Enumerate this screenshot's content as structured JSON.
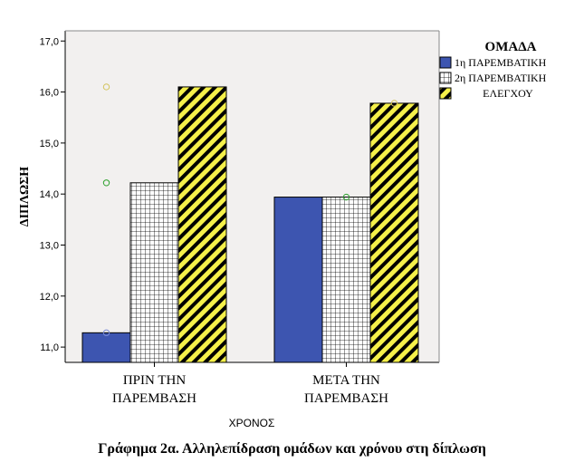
{
  "caption": "Γράφημα 2α. Αλληλεπίδραση ομάδων και χρόνου στη δίπλωση",
  "chart_data": {
    "type": "bar",
    "ylabel": "ΔΙΠΛΩΣΗ",
    "xlabel": "ΧΡΟΝΟΣ",
    "ylim": [
      10.7,
      17.2
    ],
    "yticks": [
      "11,0",
      "12,0",
      "13,0",
      "14,0",
      "15,0",
      "16,0",
      "17,0"
    ],
    "ytick_values": [
      11,
      12,
      13,
      14,
      15,
      16,
      17
    ],
    "categories": [
      [
        "ΠΡΙΝ ΤΗΝ",
        "ΠΑΡΕΜΒΑΣΗ"
      ],
      [
        "ΜΕΤΑ ΤΗΝ",
        "ΠΑΡΕΜΒΑΣΗ"
      ]
    ],
    "legend_title": "ΟΜΑΔΑ",
    "legend_position": "right",
    "grid": false,
    "series": [
      {
        "name": [
          "1η ΠΑΡΕΜΒΑΤΙΚΗ"
        ],
        "values": [
          11.28,
          13.94
        ],
        "color": "#3d55b0",
        "pattern": "solid"
      },
      {
        "name": [
          "2η ΠΑΡΕΜΒΑΤΙΚΗ"
        ],
        "values": [
          14.22,
          13.94
        ],
        "color": "#ffffff",
        "pattern": "grid"
      },
      {
        "name": [
          "ΕΛΕΓΧΟΥ"
        ],
        "values": [
          16.1,
          15.78
        ],
        "color": "#f5f04a",
        "pattern": "diagonal"
      }
    ],
    "markers": [
      {
        "category": 0,
        "series": 0,
        "y": 11.28,
        "color": "#7a8bd6"
      },
      {
        "category": 0,
        "series": 0,
        "y": 14.22,
        "color": "#2ca02c"
      },
      {
        "category": 0,
        "series": 0,
        "y": 16.1,
        "color": "#d2c35a"
      },
      {
        "category": 1,
        "series": 1,
        "y": 13.94,
        "color": "#2ca02c"
      },
      {
        "category": 1,
        "series": 2,
        "y": 15.78,
        "color": "#d2c35a"
      }
    ],
    "colors": {
      "plot_bg": "#f2f0ef",
      "axis": "#000000"
    }
  }
}
